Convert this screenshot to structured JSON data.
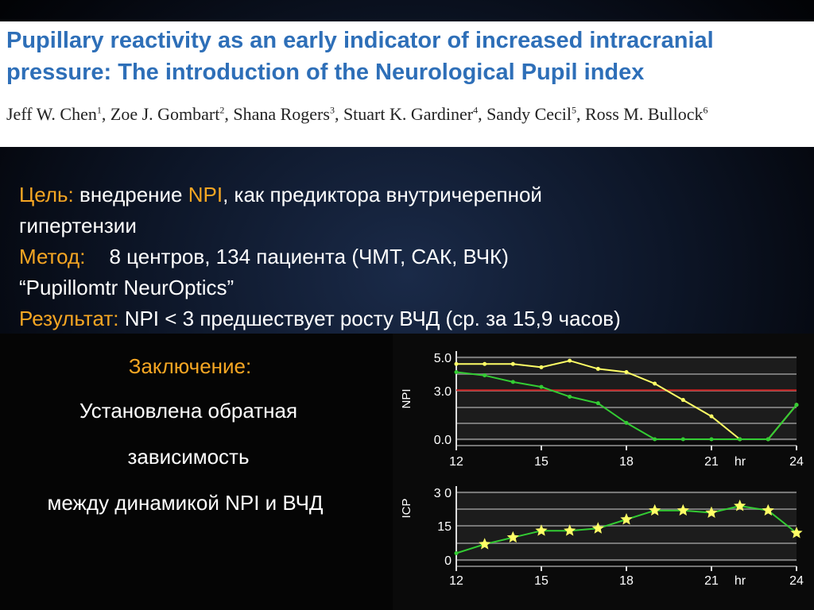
{
  "paper": {
    "title": "Pupillary reactivity as an early indicator of increased intracranial pressure: The introduction of the Neurological Pupil index",
    "authors": [
      {
        "name": "Jeff W. Chen",
        "sup": "1",
        "sep": ", "
      },
      {
        "name": "Zoe J. Gombart",
        "sup": "2",
        "sep": ", "
      },
      {
        "name": "Shana Rogers",
        "sup": "3",
        "sep": ", "
      },
      {
        "name": "Stuart K. Gardiner",
        "sup": "4",
        "sep": ", "
      },
      {
        "name": "Sandy Cecil",
        "sup": "5",
        "sep": ", "
      },
      {
        "name": "Ross M. Bullock",
        "sup": "6",
        "sep": ""
      }
    ]
  },
  "body": {
    "goal_label": "Цель:",
    "goal_text_a": " внедрение ",
    "goal_npi": "NPI",
    "goal_text_b": ", как предиктора внутричерепной",
    "goal_text_2": "гипертензии",
    "method_label": "Метод:",
    "method_text": "8 центров, 134 пациента (ЧМТ, САК, ВЧК)",
    "device": "“Pupillomtr NeurOptics”",
    "result_label": "Результат:",
    "result_text": " NPI < 3  предшествует росту ВЧД (ср. за 15,9 часов)"
  },
  "conclusion": {
    "heading": "Заключение:",
    "lines": [
      "Установлена обратная",
      "зависимость",
      "между динамикой NPI и ВЧД"
    ]
  },
  "colors": {
    "title": "#2e6fb8",
    "label": "#f5a623",
    "npi_yellow": "#ffff66",
    "green": "#33cc33",
    "threshold": "#cc2222",
    "grid": "#777777"
  },
  "chart_data": [
    {
      "type": "line",
      "ylabel": "NPI",
      "xlabel": "hr",
      "x_ticks": [
        "12",
        "15",
        "18",
        "21",
        "24"
      ],
      "y_ticks": [
        "5.0",
        "3.0",
        "0.0"
      ],
      "xlim": [
        12,
        24
      ],
      "ylim": [
        0,
        5
      ],
      "threshold": 3.0,
      "series": [
        {
          "color": "#ffff66",
          "x": [
            12,
            13,
            14,
            15,
            16,
            17,
            18,
            19,
            20,
            21,
            22,
            23,
            24
          ],
          "y": [
            4.6,
            4.6,
            4.6,
            4.4,
            4.8,
            4.3,
            4.1,
            3.4,
            2.4,
            1.4,
            0.0,
            0.0,
            2.1
          ]
        },
        {
          "color": "#33cc33",
          "x": [
            12,
            13,
            14,
            15,
            16,
            17,
            18,
            19,
            20,
            21,
            22,
            23,
            24
          ],
          "y": [
            4.1,
            3.9,
            3.5,
            3.2,
            2.6,
            2.2,
            1.0,
            0.0,
            0.0,
            0.0,
            0.0,
            0.0,
            2.1
          ]
        }
      ]
    },
    {
      "type": "line",
      "ylabel": "ICP",
      "xlabel": "hr",
      "x_ticks": [
        "12",
        "15",
        "18",
        "21",
        "24"
      ],
      "y_ticks": [
        "3 0",
        "15",
        "0"
      ],
      "xlim": [
        12,
        24
      ],
      "ylim": [
        0,
        30
      ],
      "series": [
        {
          "color": "#33cc33",
          "x": [
            12,
            13,
            14,
            15,
            16,
            17,
            18,
            19,
            20,
            21,
            22,
            23,
            24
          ],
          "y": [
            3,
            7,
            10,
            13,
            13,
            14,
            18,
            22,
            22,
            21,
            24,
            22,
            12
          ]
        }
      ]
    }
  ]
}
